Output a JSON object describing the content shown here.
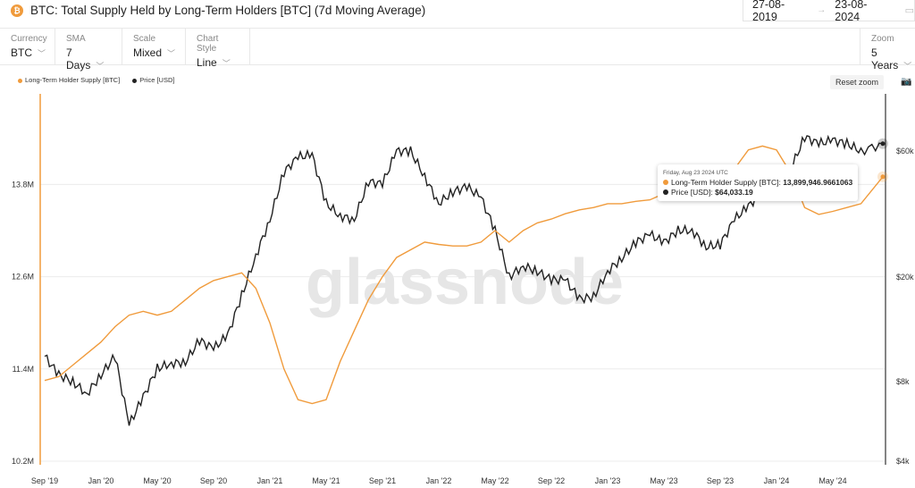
{
  "header": {
    "title": "BTC: Total Supply Held by Long-Term Holders [BTC] (7d Moving Average)",
    "coin_icon": "bitcoin-icon",
    "date_from": "27-08-2019",
    "date_to": "23-08-2024"
  },
  "controls": [
    {
      "label": "Currency",
      "value": "BTC"
    },
    {
      "label": "SMA",
      "value": "7 Days"
    },
    {
      "label": "Scale",
      "value": "Mixed"
    },
    {
      "label": "Chart Style",
      "value": "Line"
    }
  ],
  "zoom": {
    "label": "Zoom",
    "value": "5 Years"
  },
  "reset_zoom": "Reset zoom",
  "watermark": "glassnode",
  "tooltip": {
    "date": "Friday, Aug 23 2024 UTC",
    "s1_label": "Long-Term Holder Supply [BTC]:",
    "s1_value": "13,899,946.9661063",
    "s2_label": "Price [USD]:",
    "s2_value": "$64,033.19"
  },
  "chart_data": {
    "type": "line",
    "title": "BTC: Total Supply Held by Long-Term Holders [BTC] (7d Moving Average)",
    "x_ticks": [
      "Sep '19",
      "Jan '20",
      "May '20",
      "Sep '20",
      "Jan '21",
      "May '21",
      "Sep '21",
      "Jan '22",
      "May '22",
      "Sep '22",
      "Jan '23",
      "May '23",
      "Sep '23",
      "Jan '24",
      "May '24"
    ],
    "x_start": "2019-09",
    "x_end": "2024-08",
    "x_unit": "month",
    "left_axis": {
      "ticks": [
        "10.2M",
        "11.4M",
        "12.6M",
        "13.8M"
      ],
      "values": [
        10.2,
        11.4,
        12.6,
        13.8
      ],
      "range": [
        10.2,
        14.6
      ],
      "scale": "linear"
    },
    "right_axis": {
      "ticks": [
        "$4k",
        "$8k",
        "$20k",
        "$60k"
      ],
      "values": [
        4000,
        8000,
        20000,
        60000
      ],
      "range": [
        4000,
        95000
      ],
      "scale": "log"
    },
    "series": [
      {
        "name": "Long-Term Holder Supply [BTC]",
        "color": "#f09b3c",
        "axis": "left",
        "unit": "M BTC",
        "values": [
          11.25,
          11.3,
          11.45,
          11.6,
          11.75,
          11.95,
          12.1,
          12.15,
          12.1,
          12.15,
          12.3,
          12.45,
          12.55,
          12.6,
          12.65,
          12.45,
          12.0,
          11.4,
          11.0,
          10.95,
          11.0,
          11.5,
          11.9,
          12.3,
          12.6,
          12.85,
          12.95,
          13.05,
          13.02,
          13.0,
          13.0,
          13.05,
          13.2,
          13.05,
          13.2,
          13.3,
          13.35,
          13.42,
          13.47,
          13.5,
          13.55,
          13.55,
          13.58,
          13.6,
          13.68,
          13.72,
          13.75,
          13.8,
          13.85,
          14.0,
          14.25,
          14.3,
          14.25,
          13.95,
          13.5,
          13.41,
          13.45,
          13.5,
          13.55,
          13.9
        ]
      },
      {
        "name": "Price [USD]",
        "color": "#222222",
        "axis": "right",
        "unit": "USD",
        "values": [
          10000,
          8500,
          8000,
          7200,
          8500,
          10000,
          5500,
          7000,
          9000,
          9400,
          9500,
          11500,
          10700,
          12000,
          17000,
          24000,
          33000,
          50000,
          57000,
          58000,
          38000,
          34000,
          33000,
          46000,
          45000,
          60000,
          60000,
          48000,
          38000,
          42000,
          44000,
          40000,
          30000,
          20000,
          22000,
          21000,
          19500,
          19500,
          16500,
          16800,
          21000,
          23500,
          27000,
          29000,
          27000,
          30000,
          30000,
          26000,
          26500,
          33000,
          37000,
          42500,
          42000,
          51000,
          68000,
          64000,
          66000,
          64000,
          60000,
          64033
        ]
      }
    ]
  }
}
